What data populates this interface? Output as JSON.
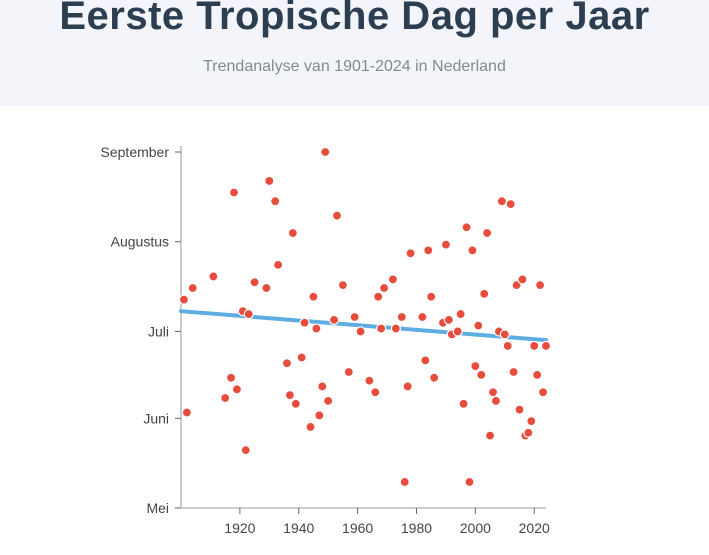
{
  "header": {
    "title": "Eerste Tropische Dag per Jaar",
    "subtitle": "Trendanalyse van 1901-2024 in Nederland"
  },
  "colors": {
    "header_bg": "#f4f5fa",
    "title": "#2c3e50",
    "point": "#e74c3c",
    "trend": "#5dade2",
    "axis": "#cccccc"
  },
  "chart_data": {
    "type": "scatter",
    "title": "",
    "xlabel": "",
    "ylabel": "",
    "xlim": [
      1900,
      2024
    ],
    "ylim": [
      121,
      244
    ],
    "x_ticks": [
      1920,
      1940,
      1960,
      1980,
      2000,
      2020
    ],
    "y_ticks": [
      {
        "label": "Mei",
        "value": 121
      },
      {
        "label": "Juni",
        "value": 152
      },
      {
        "label": "Juli",
        "value": 182
      },
      {
        "label": "Augustus",
        "value": 213
      },
      {
        "label": "September",
        "value": 244
      }
    ],
    "grid": false,
    "legend": "none",
    "points": [
      {
        "x": 1901,
        "y": 193
      },
      {
        "x": 1902,
        "y": 154
      },
      {
        "x": 1904,
        "y": 197
      },
      {
        "x": 1911,
        "y": 201
      },
      {
        "x": 1915,
        "y": 159
      },
      {
        "x": 1917,
        "y": 166
      },
      {
        "x": 1918,
        "y": 230
      },
      {
        "x": 1919,
        "y": 162
      },
      {
        "x": 1921,
        "y": 189
      },
      {
        "x": 1922,
        "y": 141
      },
      {
        "x": 1923,
        "y": 188
      },
      {
        "x": 1925,
        "y": 199
      },
      {
        "x": 1929,
        "y": 197
      },
      {
        "x": 1930,
        "y": 234
      },
      {
        "x": 1932,
        "y": 227
      },
      {
        "x": 1933,
        "y": 205
      },
      {
        "x": 1936,
        "y": 171
      },
      {
        "x": 1937,
        "y": 160
      },
      {
        "x": 1938,
        "y": 216
      },
      {
        "x": 1939,
        "y": 157
      },
      {
        "x": 1941,
        "y": 173
      },
      {
        "x": 1942,
        "y": 185
      },
      {
        "x": 1944,
        "y": 149
      },
      {
        "x": 1945,
        "y": 194
      },
      {
        "x": 1946,
        "y": 183
      },
      {
        "x": 1947,
        "y": 153
      },
      {
        "x": 1948,
        "y": 163
      },
      {
        "x": 1949,
        "y": 244
      },
      {
        "x": 1950,
        "y": 158
      },
      {
        "x": 1952,
        "y": 186
      },
      {
        "x": 1953,
        "y": 222
      },
      {
        "x": 1955,
        "y": 198
      },
      {
        "x": 1957,
        "y": 168
      },
      {
        "x": 1959,
        "y": 187
      },
      {
        "x": 1961,
        "y": 182
      },
      {
        "x": 1964,
        "y": 165
      },
      {
        "x": 1966,
        "y": 161
      },
      {
        "x": 1967,
        "y": 194
      },
      {
        "x": 1968,
        "y": 183
      },
      {
        "x": 1969,
        "y": 197
      },
      {
        "x": 1972,
        "y": 200
      },
      {
        "x": 1973,
        "y": 183
      },
      {
        "x": 1975,
        "y": 187
      },
      {
        "x": 1976,
        "y": 130
      },
      {
        "x": 1977,
        "y": 163
      },
      {
        "x": 1978,
        "y": 209
      },
      {
        "x": 1982,
        "y": 187
      },
      {
        "x": 1983,
        "y": 172
      },
      {
        "x": 1984,
        "y": 210
      },
      {
        "x": 1985,
        "y": 194
      },
      {
        "x": 1986,
        "y": 166
      },
      {
        "x": 1989,
        "y": 185
      },
      {
        "x": 1990,
        "y": 212
      },
      {
        "x": 1991,
        "y": 186
      },
      {
        "x": 1992,
        "y": 181
      },
      {
        "x": 1994,
        "y": 182
      },
      {
        "x": 1995,
        "y": 188
      },
      {
        "x": 1996,
        "y": 157
      },
      {
        "x": 1997,
        "y": 218
      },
      {
        "x": 1998,
        "y": 130
      },
      {
        "x": 1999,
        "y": 210
      },
      {
        "x": 2000,
        "y": 170
      },
      {
        "x": 2001,
        "y": 184
      },
      {
        "x": 2002,
        "y": 167
      },
      {
        "x": 2003,
        "y": 195
      },
      {
        "x": 2004,
        "y": 216
      },
      {
        "x": 2005,
        "y": 146
      },
      {
        "x": 2006,
        "y": 161
      },
      {
        "x": 2007,
        "y": 158
      },
      {
        "x": 2008,
        "y": 182
      },
      {
        "x": 2009,
        "y": 227
      },
      {
        "x": 2010,
        "y": 181
      },
      {
        "x": 2011,
        "y": 177
      },
      {
        "x": 2012,
        "y": 226
      },
      {
        "x": 2013,
        "y": 168
      },
      {
        "x": 2014,
        "y": 198
      },
      {
        "x": 2015,
        "y": 155
      },
      {
        "x": 2016,
        "y": 200
      },
      {
        "x": 2017,
        "y": 146
      },
      {
        "x": 2018,
        "y": 147
      },
      {
        "x": 2019,
        "y": 151
      },
      {
        "x": 2020,
        "y": 177
      },
      {
        "x": 2021,
        "y": 167
      },
      {
        "x": 2022,
        "y": 198
      },
      {
        "x": 2023,
        "y": 161
      },
      {
        "x": 2024,
        "y": 177
      }
    ],
    "trend": [
      {
        "x": 1900,
        "y": 189
      },
      {
        "x": 2024,
        "y": 179
      }
    ]
  }
}
